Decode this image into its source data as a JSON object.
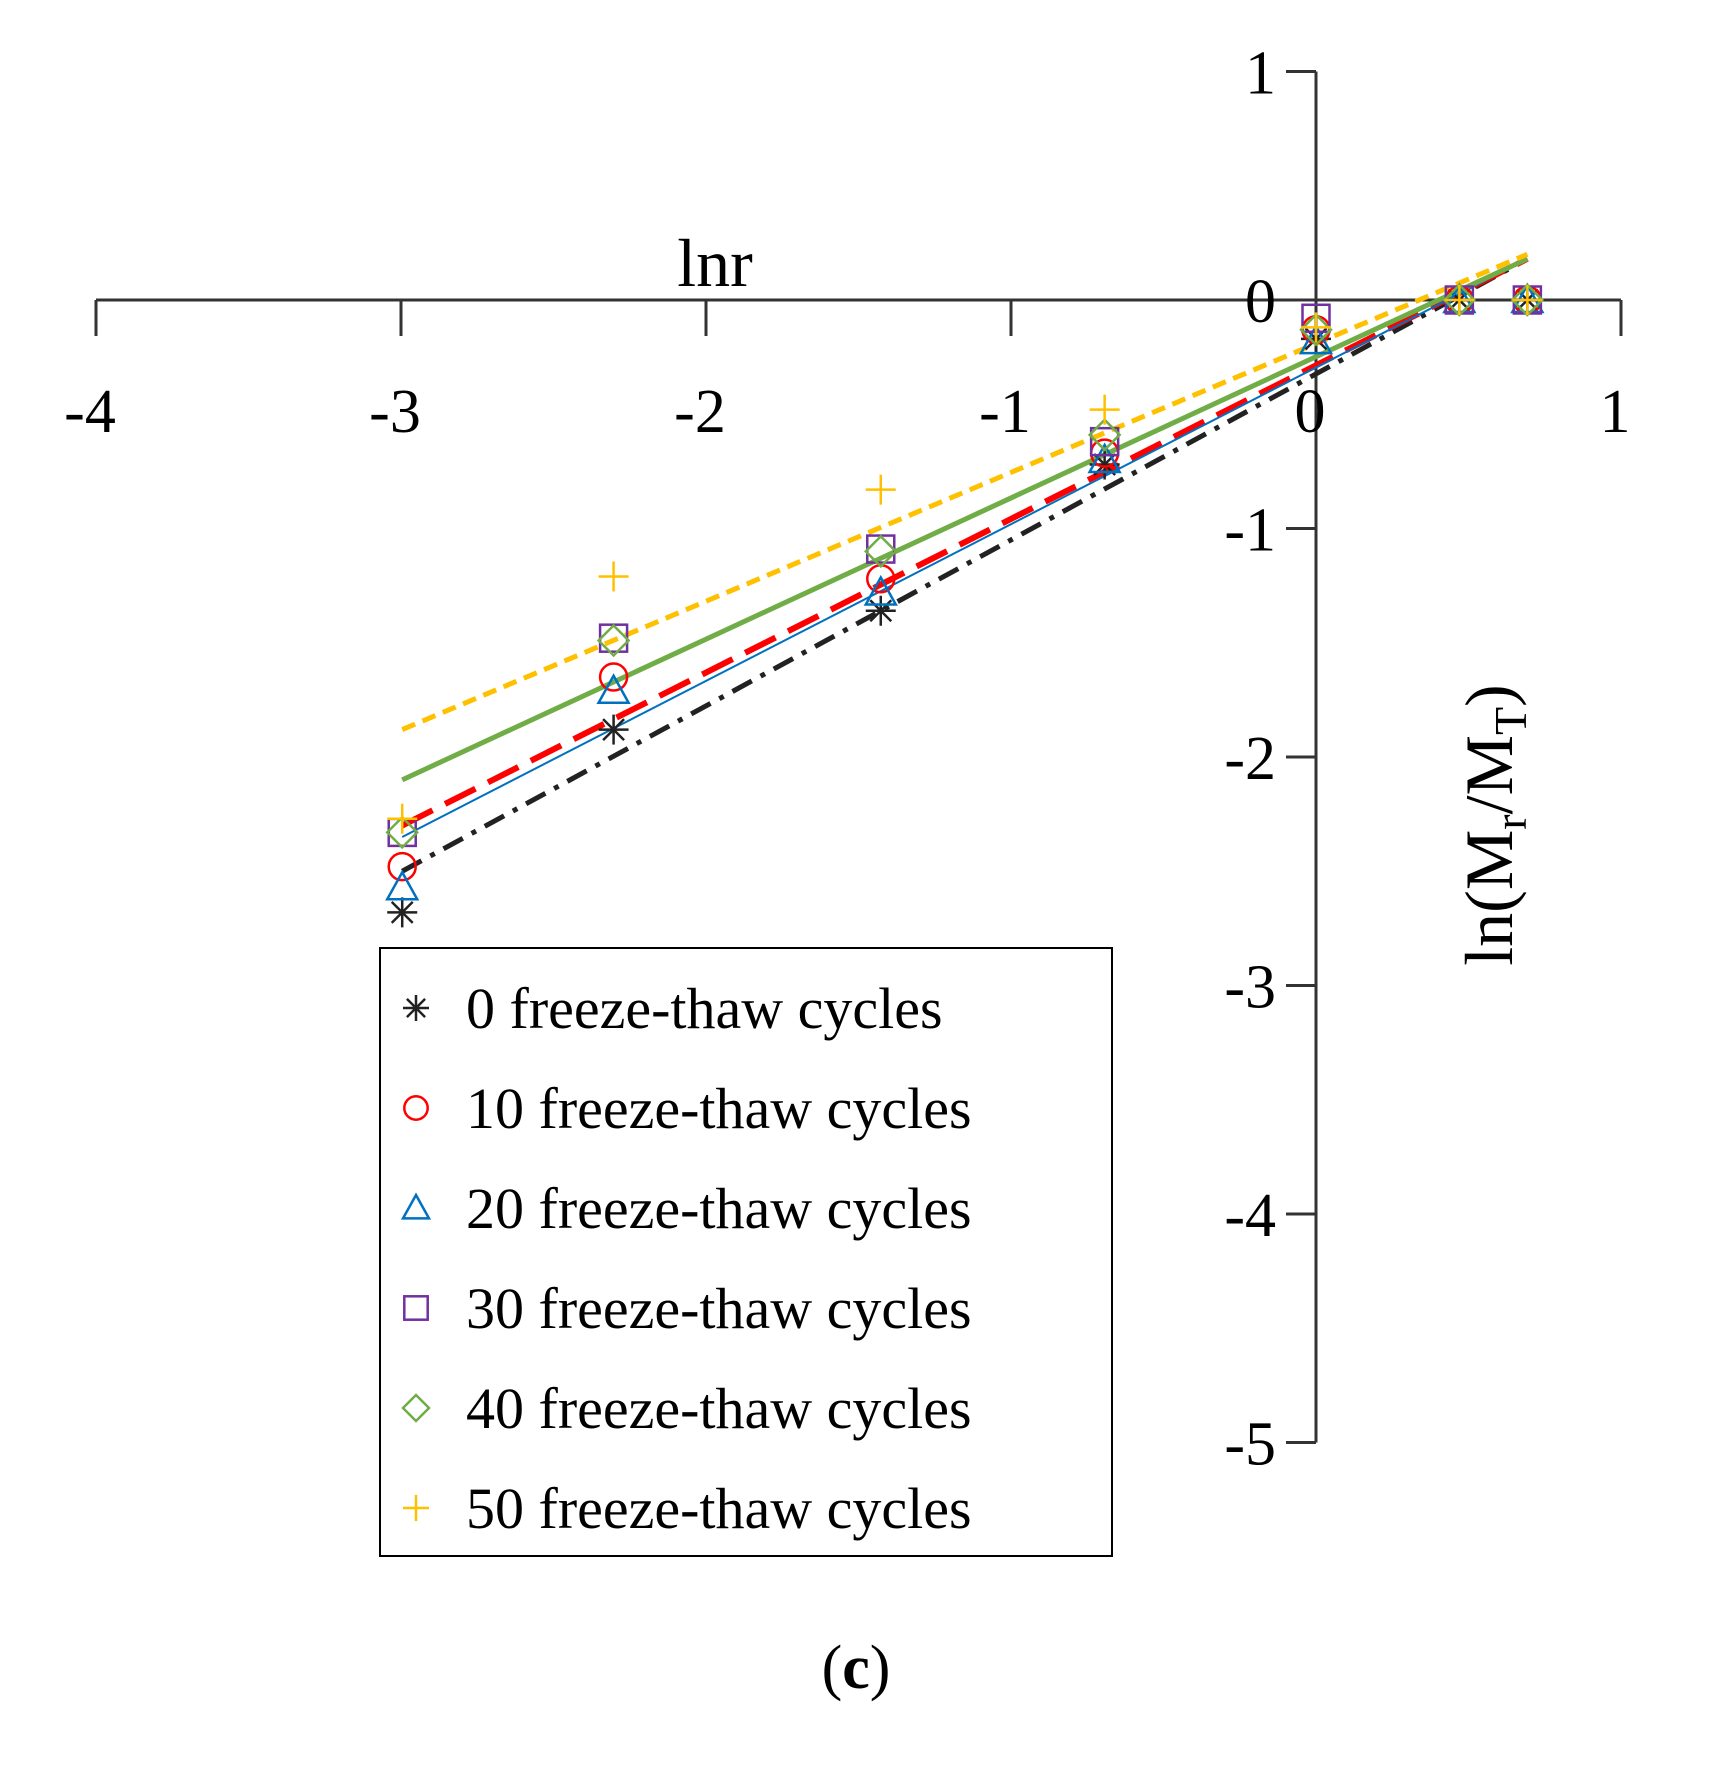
{
  "chart_data": {
    "type": "scatter",
    "title": "",
    "panel_label": {
      "open": "(",
      "letter": "c",
      "close": ")"
    },
    "xlabel": "lnr",
    "ylabel": {
      "base": "ln(M",
      "sub1": "r",
      "mid": "/M",
      "sub2": "T",
      "end": ")"
    },
    "xlim": [
      -4,
      1
    ],
    "ylim": [
      -5,
      1
    ],
    "x_ticks": [
      -4,
      -3,
      -2,
      -1,
      0,
      1
    ],
    "y_ticks": [
      1,
      0,
      -1,
      -2,
      -3,
      -4,
      -5
    ],
    "x_tick_labels": [
      "-4",
      "-3",
      "-2",
      "-1",
      "0",
      "1"
    ],
    "y_tick_labels": [
      "1",
      "0",
      "-1",
      "-2",
      "-3",
      "-4",
      "-5"
    ],
    "grid": false,
    "legend_position": "bottom-left",
    "series": [
      {
        "name": "0 freeze-thaw cycles",
        "marker": "asterisk",
        "color": "#222222",
        "line_style": "dashdot",
        "x": [
          -2.996,
          -2.303,
          -1.427,
          -0.693,
          0,
          0.47,
          0.693
        ],
        "y": [
          -2.68,
          -1.88,
          -1.36,
          -0.72,
          -0.17,
          0,
          0
        ],
        "fit": {
          "x": [
            -2.996,
            0.693
          ],
          "y": [
            -2.5,
            0.18
          ]
        }
      },
      {
        "name": "10 freeze-thaw cycles",
        "marker": "circle",
        "color": "#ff0000",
        "line_style": "dashed",
        "x": [
          -2.996,
          -2.303,
          -1.427,
          -0.693,
          0,
          0.47,
          0.693
        ],
        "y": [
          -2.48,
          -1.65,
          -1.22,
          -0.67,
          -0.13,
          0,
          0
        ],
        "fit": {
          "x": [
            -2.996,
            0.693
          ],
          "y": [
            -2.3,
            0.18
          ]
        }
      },
      {
        "name": "20 freeze-thaw cycles",
        "marker": "triangle",
        "color": "#0070c0",
        "line_style": "solid-thin",
        "x": [
          -2.996,
          -2.303,
          -1.427,
          -0.693,
          0,
          0.47,
          0.693
        ],
        "y": [
          -2.57,
          -1.71,
          -1.28,
          -0.7,
          -0.18,
          0,
          0
        ],
        "fit": {
          "x": [
            -2.996,
            0.693
          ],
          "y": [
            -2.35,
            0.18
          ]
        }
      },
      {
        "name": "30 freeze-thaw cycles",
        "marker": "square",
        "color": "#7030a0",
        "line_style": "none",
        "x": [
          -2.996,
          -2.303,
          -1.427,
          -0.693,
          0,
          0.47,
          0.693
        ],
        "y": [
          -2.33,
          -1.48,
          -1.09,
          -0.62,
          -0.08,
          0,
          0
        ]
      },
      {
        "name": "40 freeze-thaw cycles",
        "marker": "diamond",
        "color": "#70ad47",
        "line_style": "solid",
        "x": [
          -2.996,
          -2.303,
          -1.427,
          -0.693,
          0,
          0.47,
          0.693
        ],
        "y": [
          -2.33,
          -1.49,
          -1.1,
          -0.59,
          -0.13,
          0,
          0
        ],
        "fit": {
          "x": [
            -2.996,
            0.693
          ],
          "y": [
            -2.1,
            0.18
          ]
        }
      },
      {
        "name": "50 freeze-thaw cycles",
        "marker": "plus",
        "color": "#ffc000",
        "line_style": "short-dashed",
        "x": [
          -2.996,
          -2.303,
          -1.427,
          -0.693,
          0,
          0.47,
          0.693
        ],
        "y": [
          -2.27,
          -1.21,
          -0.83,
          -0.48,
          -0.12,
          0,
          0
        ],
        "fit": {
          "x": [
            -2.996,
            0.693
          ],
          "y": [
            -1.88,
            0.2
          ]
        }
      }
    ]
  }
}
